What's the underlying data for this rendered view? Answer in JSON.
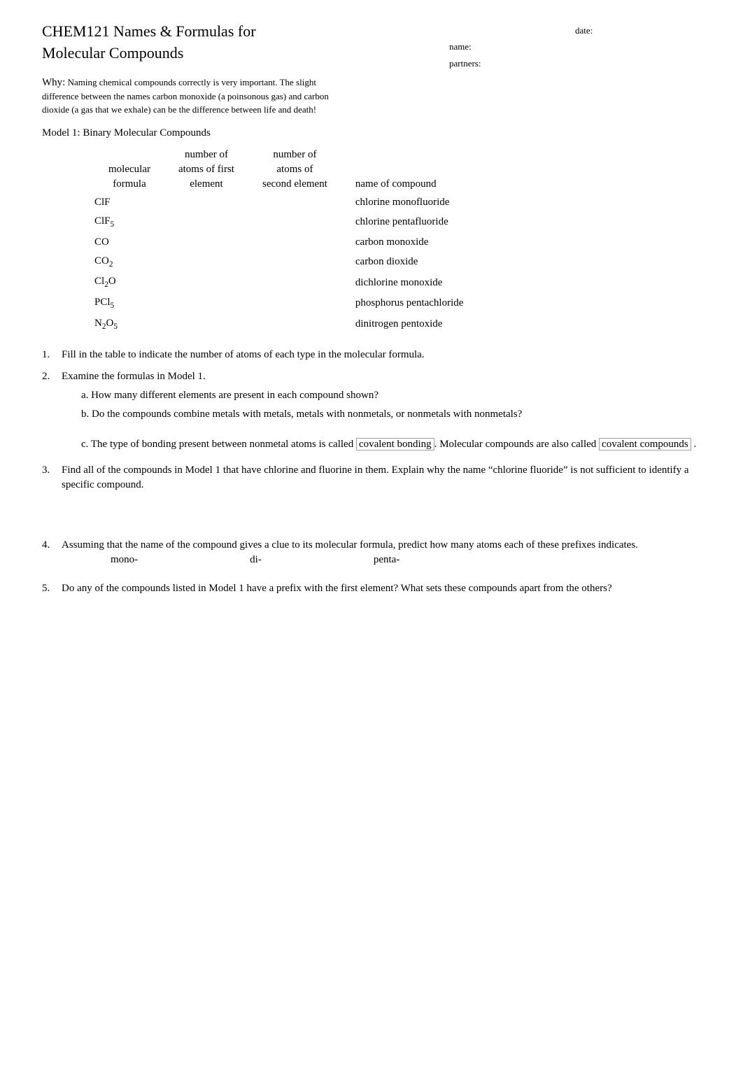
{
  "header": {
    "title_line1": "CHEM121 Names & Formulas for",
    "title_line2": "Molecular Compounds",
    "date_label": "date:",
    "name_label": "name:",
    "partners_label": "partners:"
  },
  "why": {
    "label": "Why:",
    "text": "Naming chemical compounds correctly is very important. The slight difference between the names carbon monoxide (a poinsonous gas) and carbon dioxide (a gas that we exhale) can be the difference between life and death!"
  },
  "model1": {
    "heading": "Model 1:  Binary Molecular Compounds",
    "columns": {
      "c1a": "molecular",
      "c1b": "formula",
      "c2a": "number of",
      "c2b": "atoms of first",
      "c2c": "element",
      "c3a": "number of",
      "c3b": "atoms of",
      "c3c": "second element",
      "c4": "name of compound"
    },
    "rows": [
      {
        "formula_html": "ClF",
        "name": "chlorine monofluoride"
      },
      {
        "formula_html": "ClF<sub>5</sub>",
        "name": "chlorine pentafluoride"
      },
      {
        "formula_html": "CO",
        "name": "carbon monoxide"
      },
      {
        "formula_html": "CO<sub>2</sub>",
        "name": "carbon dioxide"
      },
      {
        "formula_html": "Cl<sub>2</sub>O",
        "name": "dichlorine monoxide"
      },
      {
        "formula_html": "PCl<sub>5</sub>",
        "name": "phosphorus pentachloride"
      },
      {
        "formula_html": "N<sub>2</sub>O<sub>5</sub>",
        "name": "dinitrogen pentoxide"
      }
    ]
  },
  "questions": {
    "q1": {
      "num": "1.",
      "text": "Fill in the table to indicate the number of atoms of each type in the molecular formula."
    },
    "q2": {
      "num": "2.",
      "text": "Examine the formulas in Model 1.",
      "a": "a. How many different elements are present in each compound shown?",
      "b": "b. Do the compounds combine metals with metals, metals with nonmetals, or nonmetals with nonmetals?",
      "c_pre": "c. The type of bonding present between nonmetal atoms is called ",
      "c_box1": "covalent bonding",
      "c_mid": ".  Molecular compounds are also called",
      "c_box2": "covalent compounds",
      "c_post": "."
    },
    "q3": {
      "num": "3.",
      "text": "Find all of the compounds in Model 1 that have chlorine and fluorine in them.   Explain why the name “chlorine fluoride” is not sufficient to identify a specific compound."
    },
    "q4": {
      "num": "4.",
      "text": "Assuming that the name of the compound gives a clue to its molecular formula, predict how many atoms each of these prefixes indicates.",
      "p1": "mono-",
      "p2": "di-",
      "p3": "penta-"
    },
    "q5": {
      "num": "5.",
      "text": "Do any of the compounds listed in  Model 1 have a prefix with the first element?    What sets these compounds apart from the others?"
    }
  }
}
